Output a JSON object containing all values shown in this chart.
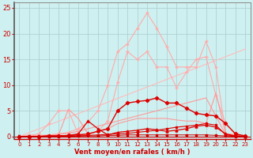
{
  "bg_color": "#cff0f0",
  "grid_color": "#aacccc",
  "xlabel": "Vent moyen/en rafales ( km/h )",
  "xlabel_color": "#cc0000",
  "tick_color": "#cc0000",
  "arrow_color": "#cc0000",
  "xlim": [
    -0.5,
    23.5
  ],
  "ylim": [
    -0.5,
    26
  ],
  "yticks": [
    0,
    5,
    10,
    15,
    20,
    25
  ],
  "xticks": [
    0,
    1,
    2,
    3,
    4,
    5,
    6,
    7,
    8,
    9,
    10,
    11,
    12,
    13,
    14,
    15,
    16,
    17,
    18,
    19,
    20,
    21,
    22,
    23
  ],
  "lines": [
    {
      "x": [
        0,
        23
      ],
      "y": [
        0,
        17
      ],
      "color": "#ffbbbb",
      "lw": 0.8,
      "marker": null,
      "ms": 0
    },
    {
      "x": [
        0,
        1,
        2,
        3,
        4,
        5,
        6,
        7,
        8,
        9,
        10,
        11,
        12,
        13,
        14,
        15,
        16,
        17,
        18,
        19,
        20,
        21,
        22,
        23
      ],
      "y": [
        0,
        0.1,
        0.2,
        0.3,
        0.5,
        0.8,
        1.5,
        2.8,
        5.0,
        10.0,
        16.5,
        18.0,
        21.0,
        24.0,
        21.0,
        17.5,
        13.5,
        13.5,
        13.5,
        18.5,
        13.5,
        0.5,
        0.3,
        0.1
      ],
      "color": "#ffaaaa",
      "lw": 0.8,
      "marker": "+",
      "ms": 3
    },
    {
      "x": [
        0,
        1,
        2,
        3,
        4,
        5,
        6,
        7,
        8,
        9,
        10,
        11,
        12,
        13,
        14,
        15,
        16,
        17,
        18,
        19,
        20,
        21,
        22,
        23
      ],
      "y": [
        0,
        0.2,
        0.5,
        2.5,
        5.0,
        5.0,
        0.5,
        0.3,
        1.0,
        3.0,
        10.5,
        16.5,
        15.0,
        16.5,
        13.5,
        13.5,
        9.5,
        12.5,
        15.0,
        15.5,
        8.0,
        2.5,
        0.3,
        0.1
      ],
      "color": "#ffaaaa",
      "lw": 0.8,
      "marker": "+",
      "ms": 3
    },
    {
      "x": [
        0,
        1,
        2,
        3,
        4,
        5,
        6,
        7,
        8,
        9,
        10,
        11,
        12,
        13,
        14,
        15,
        16,
        17,
        18,
        19,
        20,
        21,
        22,
        23
      ],
      "y": [
        0,
        0.1,
        0.1,
        0.2,
        0.3,
        5.3,
        3.5,
        0.5,
        1.0,
        1.5,
        2.5,
        3.0,
        3.5,
        3.5,
        3.5,
        3.5,
        3.2,
        3.0,
        3.0,
        2.5,
        8.5,
        0.5,
        0.3,
        0.1
      ],
      "color": "#ff9999",
      "lw": 0.8,
      "marker": null,
      "ms": 0
    },
    {
      "x": [
        0,
        1,
        2,
        3,
        4,
        5,
        6,
        7,
        8,
        9,
        10,
        11,
        12,
        13,
        14,
        15,
        16,
        17,
        18,
        19,
        20,
        21,
        22,
        23
      ],
      "y": [
        0,
        0.0,
        0.1,
        0.2,
        0.4,
        0.6,
        1.0,
        1.5,
        2.0,
        2.5,
        3.0,
        3.5,
        4.0,
        4.5,
        5.0,
        5.5,
        6.0,
        6.5,
        7.0,
        7.5,
        4.0,
        0.3,
        0.1,
        0.0
      ],
      "color": "#ff9999",
      "lw": 0.8,
      "marker": null,
      "ms": 0
    },
    {
      "x": [
        0,
        1,
        2,
        3,
        4,
        5,
        6,
        7,
        8,
        9,
        10,
        11,
        12,
        13,
        14,
        15,
        16,
        17,
        18,
        19,
        20,
        21,
        22,
        23
      ],
      "y": [
        0,
        0.0,
        0.0,
        0.1,
        0.1,
        0.2,
        0.3,
        0.5,
        1.0,
        1.5,
        5.0,
        6.5,
        6.8,
        7.0,
        7.5,
        6.5,
        6.5,
        5.5,
        4.5,
        4.2,
        4.0,
        2.5,
        0.5,
        0.1
      ],
      "color": "#dd0000",
      "lw": 1.0,
      "marker": "D",
      "ms": 2.2
    },
    {
      "x": [
        0,
        1,
        2,
        3,
        4,
        5,
        6,
        7,
        8,
        9,
        10,
        11,
        12,
        13,
        14,
        15,
        16,
        17,
        18,
        19,
        20,
        21,
        22,
        23
      ],
      "y": [
        0,
        0.0,
        0.0,
        0.1,
        0.1,
        0.2,
        0.5,
        3.0,
        1.5,
        0.3,
        0.8,
        1.0,
        1.2,
        1.5,
        1.3,
        1.0,
        1.2,
        1.5,
        2.0,
        2.2,
        1.8,
        0.5,
        0.1,
        0.0
      ],
      "color": "#dd0000",
      "lw": 0.9,
      "marker": "^",
      "ms": 2.2
    },
    {
      "x": [
        0,
        1,
        2,
        3,
        4,
        5,
        6,
        7,
        8,
        9,
        10,
        11,
        12,
        13,
        14,
        15,
        16,
        17,
        18,
        19,
        20,
        21,
        22,
        23
      ],
      "y": [
        0,
        0.0,
        0.0,
        0.0,
        0.1,
        0.1,
        0.1,
        0.2,
        0.3,
        0.4,
        0.5,
        0.6,
        0.8,
        1.0,
        1.2,
        1.5,
        1.8,
        2.0,
        2.2,
        2.5,
        2.2,
        0.3,
        0.1,
        0.0
      ],
      "color": "#dd0000",
      "lw": 0.8,
      "marker": "s",
      "ms": 1.8
    },
    {
      "x": [
        0,
        1,
        2,
        3,
        4,
        5,
        6,
        7,
        8,
        9,
        10,
        11,
        12,
        13,
        14,
        15,
        16,
        17,
        18,
        19,
        20,
        21,
        22,
        23
      ],
      "y": [
        0,
        0.0,
        0.0,
        0.0,
        0.0,
        0.0,
        0.1,
        0.1,
        0.1,
        0.2,
        0.2,
        0.3,
        0.3,
        0.3,
        0.3,
        0.3,
        0.3,
        0.3,
        0.3,
        0.3,
        0.2,
        0.1,
        0.0,
        0.0
      ],
      "color": "#cc0000",
      "lw": 0.7,
      "marker": "s",
      "ms": 1.5
    }
  ],
  "arrows_x": [
    0,
    1,
    2,
    3,
    4,
    5,
    6,
    7,
    8,
    9,
    10,
    11,
    12,
    13,
    14,
    15,
    16,
    17,
    18,
    19,
    20,
    21,
    22,
    23
  ]
}
